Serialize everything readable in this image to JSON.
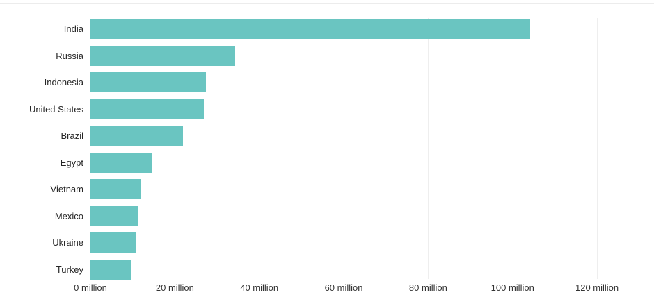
{
  "chart_data": {
    "type": "bar",
    "orientation": "horizontal",
    "title": "",
    "xlabel": "",
    "ylabel": "",
    "unit": "million",
    "categories": [
      "India",
      "Russia",
      "Indonesia",
      "United States",
      "Brazil",
      "Egypt",
      "Vietnam",
      "Mexico",
      "Ukraine",
      "Turkey"
    ],
    "values": [
      104.2,
      34.3,
      27.4,
      26.8,
      21.9,
      14.7,
      11.8,
      11.4,
      10.8,
      9.7
    ],
    "x_ticks": [
      {
        "value": 0,
        "label": "0 million"
      },
      {
        "value": 20,
        "label": "20 million"
      },
      {
        "value": 40,
        "label": "40 million"
      },
      {
        "value": 60,
        "label": "60 million"
      },
      {
        "value": 80,
        "label": "80 million"
      },
      {
        "value": 100,
        "label": "100 million"
      },
      {
        "value": 120,
        "label": "120 million"
      }
    ],
    "xlim": [
      0,
      133.5
    ],
    "grid": true,
    "legend": false,
    "colors": {
      "bar": "#6ac5c1",
      "gridline": "#eeeeee",
      "label_text": "#262626",
      "tick_text": "#333333",
      "border": "#e2e2e2"
    }
  }
}
